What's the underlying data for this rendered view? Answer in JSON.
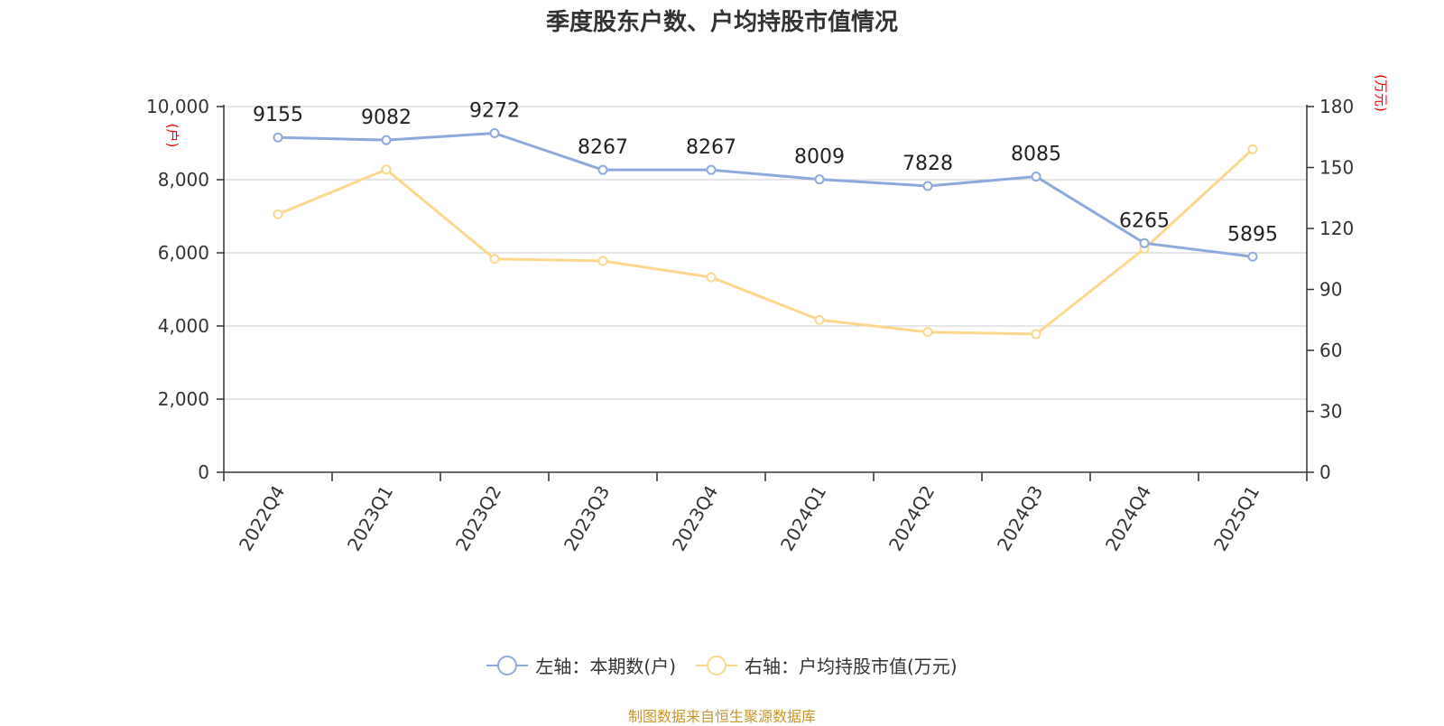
{
  "title": "季度股东户数、户均持股市值情况",
  "source": "制图数据来自恒生聚源数据库",
  "colors": {
    "left_series": "#8eaadc",
    "right_series": "#fcd88f",
    "unit": "#ff0000",
    "text": "#333333",
    "grid": "#cccccc"
  },
  "legend": {
    "left": "左轴：本期数(户)",
    "right": "右轴：户均持股市值(万元)"
  },
  "chart_data": {
    "type": "line",
    "title": "季度股东户数、户均持股市值情况",
    "categories": [
      "2022Q4",
      "2023Q1",
      "2023Q2",
      "2023Q3",
      "2023Q4",
      "2024Q1",
      "2024Q2",
      "2024Q3",
      "2024Q4",
      "2025Q1"
    ],
    "y_left": {
      "unit": "(户)",
      "ylim": [
        0,
        10000
      ],
      "ticks": [
        "0",
        "2,000",
        "4,000",
        "6,000",
        "8,000",
        "10,000"
      ]
    },
    "y_right": {
      "unit": "(万元)",
      "ylim": [
        0,
        180
      ],
      "ticks": [
        "0",
        "30",
        "60",
        "90",
        "120",
        "150",
        "180"
      ]
    },
    "grid": true,
    "legend_position": "bottom",
    "series": [
      {
        "name": "左轴：本期数(户)",
        "axis": "left",
        "values": [
          9155,
          9082,
          9272,
          8267,
          8267,
          8009,
          7828,
          8085,
          6265,
          5895
        ],
        "labels": true
      },
      {
        "name": "右轴：户均持股市值(万元)",
        "axis": "right",
        "values": [
          127,
          149,
          105,
          104,
          96,
          75,
          69,
          68,
          110,
          159
        ],
        "labels": false
      }
    ]
  }
}
